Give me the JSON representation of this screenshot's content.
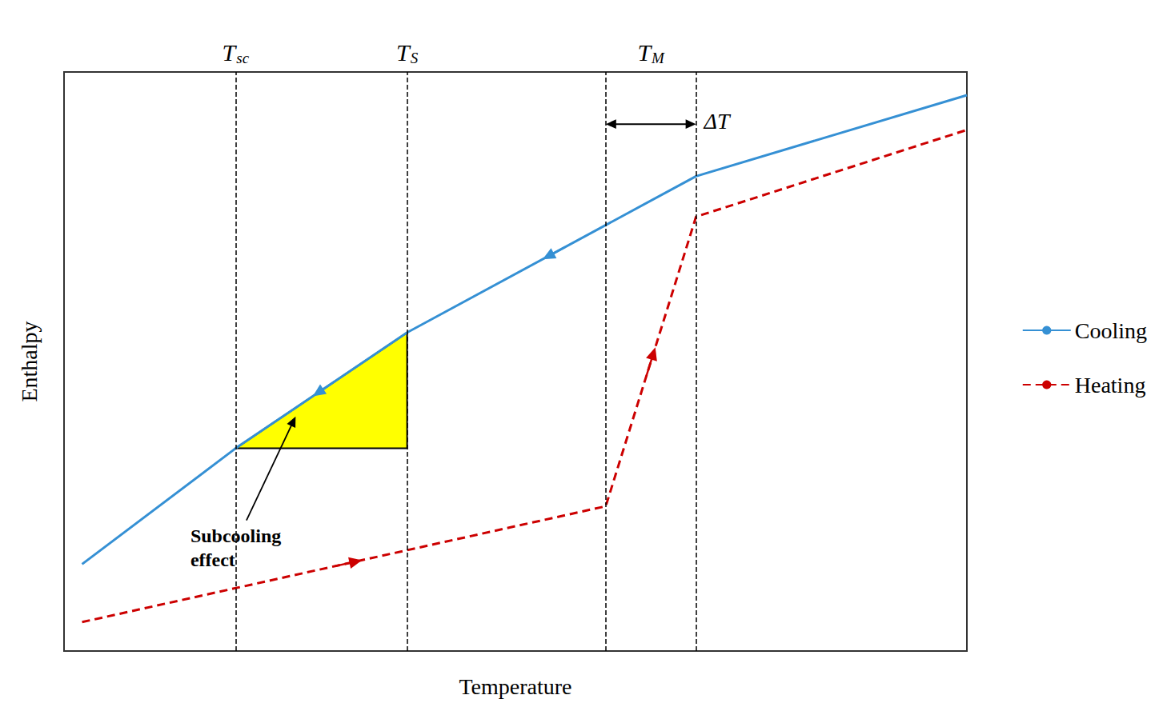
{
  "chart_data": {
    "type": "line",
    "xlabel": "Temperature",
    "ylabel": "Enthalpy",
    "xlim": [
      0,
      10
    ],
    "ylim": [
      0,
      10
    ],
    "xticks": [],
    "yticks": [],
    "tick_labels": false,
    "grid": false,
    "legend": "right",
    "series": [
      {
        "name": "Cooling",
        "color": "#3590d4",
        "line_style": "solid",
        "x": [
          0.2,
          1.9,
          3.8,
          7.0,
          10.0
        ],
        "values": [
          1.5,
          3.5,
          5.5,
          8.2,
          9.6
        ],
        "arrows": [
          {
            "from": [
              5.55,
              6.9765625
            ],
            "to": [
              5.3,
              6.765625
            ]
          },
          {
            "from": [
              2.996062,
              4.65375
            ],
            "to": [
              2.755,
              4.4
            ]
          }
        ]
      },
      {
        "name": "Heating",
        "color": "#cc0000",
        "line_style": "dashed",
        "x": [
          0.2,
          6.0,
          7.0,
          10.0
        ],
        "values": [
          0.5,
          2.5,
          7.5,
          9.0
        ],
        "arrows": [
          {
            "from": [
              3.0,
              1.465517
            ],
            "to": [
              3.3,
              1.568966
            ]
          },
          {
            "from": [
              6.450971,
              4.754855
            ],
            "to": [
              6.549029,
              5.245145
            ]
          }
        ]
      }
    ],
    "vlines": [
      1.9,
      3.8,
      6.0,
      7.0
    ],
    "fill": {
      "x": [
        1.9,
        3.8,
        3.8
      ],
      "y": [
        3.5,
        5.5,
        3.5
      ],
      "color": "#ffff00"
    },
    "line_labels": [
      {
        "text": "T",
        "subscript": "sc",
        "x": 1.9
      },
      {
        "text": "T",
        "subscript": "S",
        "x": 3.8
      },
      {
        "text": "T",
        "subscript": "M",
        "x": 6.5
      }
    ],
    "span_arrow": {
      "x": [
        6.0,
        7.0
      ],
      "y": 9.1,
      "label": "ΔT"
    },
    "annotations": [
      {
        "text": "Subcooling\neffect",
        "x": 1.4,
        "y": 2.2,
        "target": [
          2.565,
          4.05
        ]
      }
    ]
  }
}
